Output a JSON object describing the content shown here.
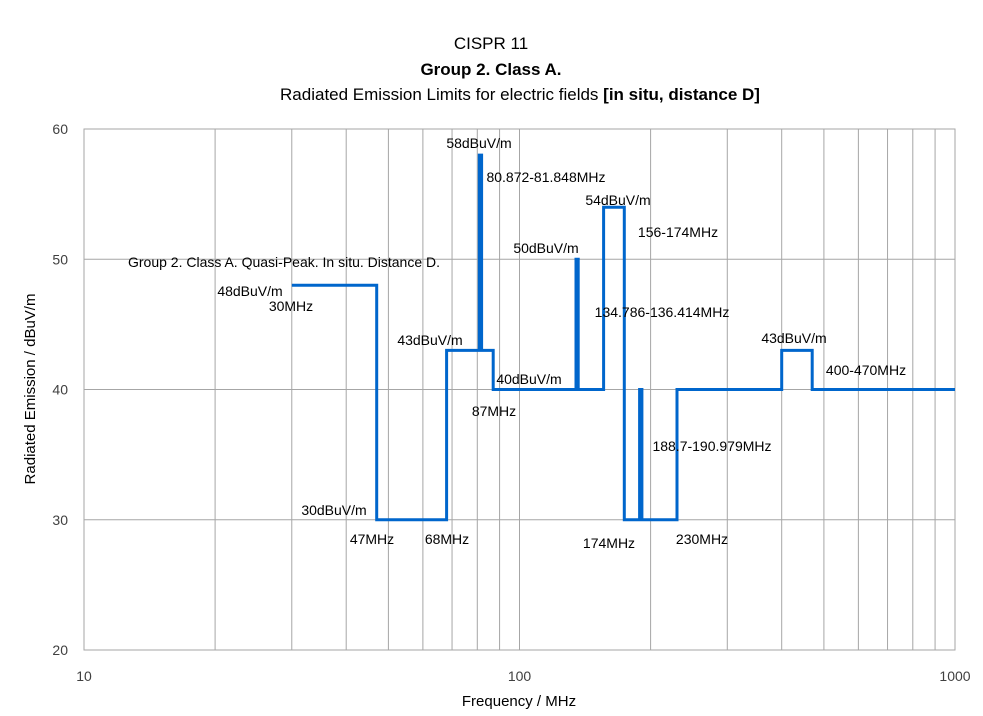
{
  "chart_data": {
    "type": "line",
    "title": [
      "CISPR 11",
      "Group 2. Class A.",
      "Radiated Emission Limits for electric fields "
    ],
    "title_bold_suffix": "[in situ, distance D]",
    "xlabel": "Frequency / MHz",
    "ylabel": "Radiated Emission / dBuV/m",
    "xscale": "log",
    "xlim": [
      10,
      1000
    ],
    "ylim": [
      20,
      60
    ],
    "xticks": [
      10,
      100,
      1000
    ],
    "yticks": [
      20,
      30,
      40,
      50,
      60
    ],
    "grid": true,
    "line_color": "#0066CC",
    "series": [
      {
        "name": "Group 2. Class A. Quasi-Peak. In situ. Distance D.",
        "step_points": [
          [
            30,
            48
          ],
          [
            47,
            48
          ],
          [
            47,
            30
          ],
          [
            68,
            30
          ],
          [
            68,
            43
          ],
          [
            80.872,
            43
          ],
          [
            80.872,
            58
          ],
          [
            81.848,
            58
          ],
          [
            81.848,
            43
          ],
          [
            87,
            43
          ],
          [
            87,
            40
          ],
          [
            134.786,
            40
          ],
          [
            134.786,
            50
          ],
          [
            136.414,
            50
          ],
          [
            136.414,
            40
          ],
          [
            156,
            40
          ],
          [
            156,
            54
          ],
          [
            174,
            54
          ],
          [
            174,
            30
          ],
          [
            188.7,
            30
          ],
          [
            188.7,
            40
          ],
          [
            190.979,
            40
          ],
          [
            190.979,
            30
          ],
          [
            230,
            30
          ],
          [
            230,
            40
          ],
          [
            400,
            40
          ],
          [
            400,
            43
          ],
          [
            470,
            43
          ],
          [
            470,
            40
          ],
          [
            1000,
            40
          ]
        ]
      }
    ],
    "annotations": [
      "Group 2. Class A. Quasi-Peak. In situ. Distance D.",
      "48dBuV/m",
      "30MHz",
      "43dBuV/m",
      "58dBuV/m",
      "80.872-81.848MHz",
      "54dBuV/m",
      "156-174MHz",
      "50dBuV/m",
      "134.786-136.414MHz",
      "40dBuV/m",
      "87MHz",
      "43dBuV/m",
      "400-470MHz",
      "188.7-190.979MHz",
      "30dBuV/m",
      "47MHz",
      "68MHz",
      "174MHz",
      "230MHz"
    ]
  }
}
